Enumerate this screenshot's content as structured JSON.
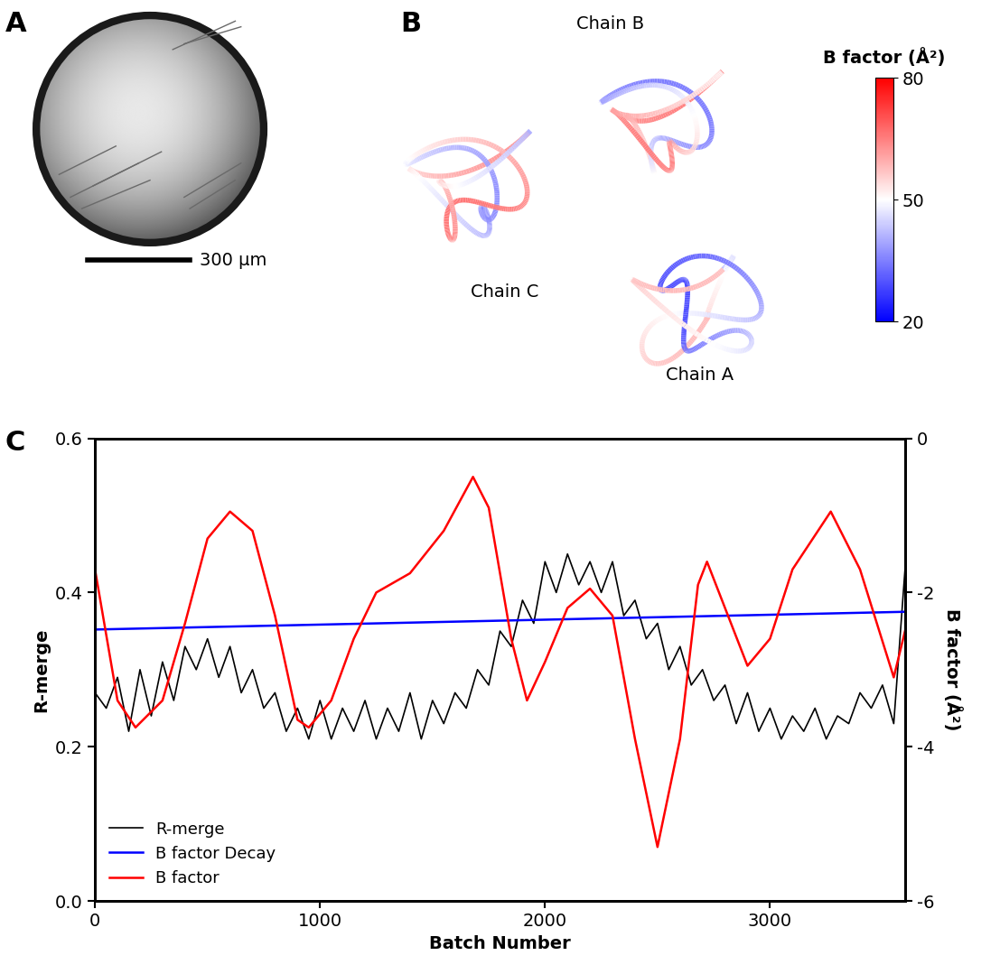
{
  "panel_labels": [
    "A",
    "B",
    "C"
  ],
  "panel_a": {
    "scale_bar_label": "300 µm"
  },
  "panel_b": {
    "chains": [
      "Chain A",
      "Chain B",
      "Chain C"
    ],
    "color_bar": {
      "label": "B factor (Å²)",
      "range": [
        20,
        80
      ],
      "ticks": [
        20,
        50,
        80
      ]
    }
  },
  "chart_data": {
    "type": "line",
    "xlabel": "Batch Number",
    "ylabel": "R-merge",
    "y2label": "B factor (Å²)",
    "xlim": [
      0,
      3600
    ],
    "xticks": [
      0,
      1000,
      2000,
      3000
    ],
    "ylim": [
      0,
      0.6
    ],
    "yticks": [
      0.0,
      0.2,
      0.4,
      0.6
    ],
    "y2lim": [
      -6,
      0
    ],
    "y2ticks": [
      -6,
      -4,
      -2,
      0
    ],
    "legend": "lower left",
    "series": [
      {
        "name": "R-merge",
        "color": "#000000",
        "x": [
          0,
          50,
          100,
          150,
          200,
          250,
          300,
          350,
          400,
          450,
          500,
          550,
          600,
          650,
          700,
          750,
          800,
          850,
          900,
          950,
          1000,
          1050,
          1100,
          1150,
          1200,
          1250,
          1300,
          1350,
          1400,
          1450,
          1500,
          1550,
          1600,
          1650,
          1700,
          1750,
          1800,
          1850,
          1900,
          1950,
          2000,
          2050,
          2100,
          2150,
          2200,
          2250,
          2300,
          2350,
          2400,
          2450,
          2500,
          2550,
          2600,
          2650,
          2700,
          2750,
          2800,
          2850,
          2900,
          2950,
          3000,
          3050,
          3100,
          3150,
          3200,
          3250,
          3300,
          3350,
          3400,
          3450,
          3500,
          3550,
          3600
        ],
        "values": [
          0.27,
          0.25,
          0.29,
          0.22,
          0.3,
          0.24,
          0.31,
          0.26,
          0.33,
          0.3,
          0.34,
          0.29,
          0.33,
          0.27,
          0.3,
          0.25,
          0.27,
          0.22,
          0.25,
          0.21,
          0.26,
          0.21,
          0.25,
          0.22,
          0.26,
          0.21,
          0.25,
          0.22,
          0.27,
          0.21,
          0.26,
          0.23,
          0.27,
          0.25,
          0.3,
          0.28,
          0.35,
          0.33,
          0.39,
          0.36,
          0.44,
          0.4,
          0.45,
          0.41,
          0.44,
          0.4,
          0.44,
          0.37,
          0.39,
          0.34,
          0.36,
          0.3,
          0.33,
          0.28,
          0.3,
          0.26,
          0.28,
          0.23,
          0.27,
          0.22,
          0.25,
          0.21,
          0.24,
          0.22,
          0.25,
          0.21,
          0.24,
          0.23,
          0.27,
          0.25,
          0.28,
          0.23,
          0.43
        ]
      },
      {
        "name": "B factor Decay",
        "color": "#0000ff",
        "axis": "y2",
        "x": [
          0,
          3600
        ],
        "values": [
          -2.48,
          -2.25
        ]
      },
      {
        "name": "B factor",
        "color": "#ff0000",
        "axis": "y2",
        "x": [
          0,
          100,
          180,
          300,
          400,
          500,
          600,
          700,
          800,
          900,
          950,
          1050,
          1150,
          1250,
          1400,
          1550,
          1680,
          1750,
          1850,
          1920,
          2000,
          2100,
          2200,
          2300,
          2400,
          2500,
          2600,
          2680,
          2720,
          2800,
          2900,
          3000,
          3100,
          3270,
          3400,
          3550,
          3600
        ],
        "values": [
          -1.7,
          -3.4,
          -3.75,
          -3.4,
          -2.4,
          -1.3,
          -0.95,
          -1.2,
          -2.3,
          -3.65,
          -3.75,
          -3.4,
          -2.6,
          -2.0,
          -1.75,
          -1.2,
          -0.5,
          -0.9,
          -2.6,
          -3.4,
          -2.9,
          -2.2,
          -1.95,
          -2.3,
          -3.9,
          -5.3,
          -3.9,
          -1.9,
          -1.6,
          -2.2,
          -2.95,
          -2.6,
          -1.7,
          -0.95,
          -1.7,
          -3.1,
          -2.5
        ]
      }
    ]
  }
}
